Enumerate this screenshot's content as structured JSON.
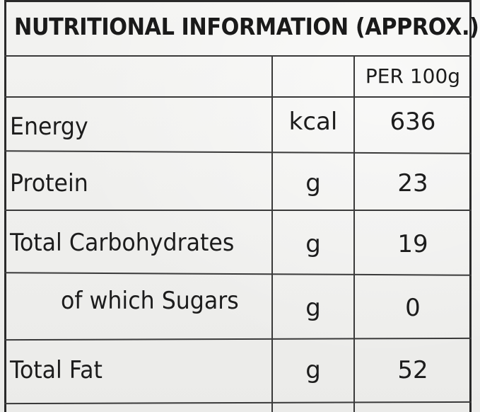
{
  "title": "NUTRITIONAL INFORMATION (APPROX.)",
  "column_header": "PER 100g",
  "rows": [
    {
      "nutrient": "Energy",
      "unit": "kcal",
      "value": "636"
    },
    {
      "nutrient": "Protein",
      "unit": "g",
      "value": "23"
    },
    {
      "nutrient": "Total Carbohydrates",
      "unit": "g",
      "value": "19"
    },
    {
      "nutrient": "of which Sugars",
      "unit": "g",
      "value": "0"
    },
    {
      "nutrient": "Total Fat",
      "unit": "g",
      "value": "52"
    }
  ]
}
